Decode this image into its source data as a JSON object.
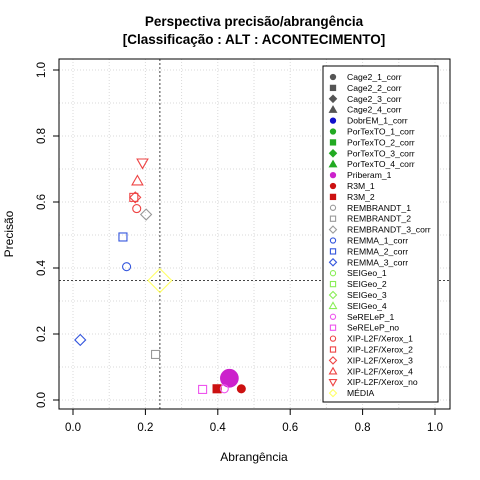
{
  "chart_data": {
    "type": "scatter",
    "title": "Perspectiva precisão/abrangência",
    "subtitle": "[Classificação : ALT : ACONTECIMENTO]",
    "xlabel": "Abrangência",
    "ylabel": "Precisão",
    "xlim": [
      0,
      1
    ],
    "ylim": [
      0,
      1
    ],
    "xticks": [
      "0.0",
      "0.2",
      "0.4",
      "0.6",
      "0.8",
      "1.0"
    ],
    "yticks": [
      "0.0",
      "0.2",
      "0.4",
      "0.6",
      "0.8",
      "1.0"
    ],
    "grid": true,
    "legend_position": "top-right",
    "reference_lines": {
      "x": 0.24,
      "y": 0.362
    },
    "series": [
      {
        "name": "Cage2_1_corr",
        "color": "#555555",
        "shape": "circle",
        "filled": true,
        "points": []
      },
      {
        "name": "Cage2_2_corr",
        "color": "#555555",
        "shape": "square",
        "filled": true,
        "points": []
      },
      {
        "name": "Cage2_3_corr",
        "color": "#555555",
        "shape": "diamond",
        "filled": true,
        "points": []
      },
      {
        "name": "Cage2_4_corr",
        "color": "#555555",
        "shape": "triangle",
        "filled": true,
        "points": []
      },
      {
        "name": "DobrEM_1_corr",
        "color": "#1010cc",
        "shape": "circle",
        "filled": true,
        "points": []
      },
      {
        "name": "PorTexTO_1_corr",
        "color": "#22aa22",
        "shape": "circle",
        "filled": true,
        "points": []
      },
      {
        "name": "PorTexTO_2_corr",
        "color": "#22aa22",
        "shape": "square",
        "filled": true,
        "points": []
      },
      {
        "name": "PorTexTO_3_corr",
        "color": "#22aa22",
        "shape": "diamond",
        "filled": true,
        "points": []
      },
      {
        "name": "PorTexTO_4_corr",
        "color": "#22aa22",
        "shape": "triangle",
        "filled": true,
        "points": []
      },
      {
        "name": "Priberam_1",
        "color": "#cc22cc",
        "shape": "circle",
        "filled": true,
        "points": [
          {
            "x": 0.432,
            "y": 0.066,
            "size": 2.2
          }
        ]
      },
      {
        "name": "R3M_1",
        "color": "#cc1111",
        "shape": "circle",
        "filled": true,
        "points": [
          {
            "x": 0.465,
            "y": 0.034
          }
        ]
      },
      {
        "name": "R3M_2",
        "color": "#cc1111",
        "shape": "square",
        "filled": true,
        "points": [
          {
            "x": 0.398,
            "y": 0.034
          }
        ]
      },
      {
        "name": "REMBRANDT_1",
        "color": "#999999",
        "shape": "circle",
        "filled": false,
        "points": []
      },
      {
        "name": "REMBRANDT_2",
        "color": "#999999",
        "shape": "square",
        "filled": false,
        "points": [
          {
            "x": 0.228,
            "y": 0.138
          }
        ]
      },
      {
        "name": "REMBRANDT_3_corr",
        "color": "#999999",
        "shape": "diamond",
        "filled": false,
        "points": [
          {
            "x": 0.202,
            "y": 0.562
          }
        ]
      },
      {
        "name": "REMMA_1_corr",
        "color": "#3355dd",
        "shape": "circle",
        "filled": false,
        "points": [
          {
            "x": 0.148,
            "y": 0.404
          }
        ]
      },
      {
        "name": "REMMA_2_corr",
        "color": "#3355dd",
        "shape": "square",
        "filled": false,
        "points": [
          {
            "x": 0.138,
            "y": 0.494
          }
        ]
      },
      {
        "name": "REMMA_3_corr",
        "color": "#3355dd",
        "shape": "diamond",
        "filled": false,
        "points": [
          {
            "x": 0.02,
            "y": 0.182
          }
        ]
      },
      {
        "name": "SEIGeo_1",
        "color": "#88ee55",
        "shape": "circle",
        "filled": false,
        "points": []
      },
      {
        "name": "SEIGeo_2",
        "color": "#88ee55",
        "shape": "square",
        "filled": false,
        "points": []
      },
      {
        "name": "SEIGeo_3",
        "color": "#88ee55",
        "shape": "diamond",
        "filled": false,
        "points": []
      },
      {
        "name": "SEIGeo_4",
        "color": "#88ee55",
        "shape": "triangle",
        "filled": false,
        "points": []
      },
      {
        "name": "SeRELeP_1",
        "color": "#ee55ee",
        "shape": "circle",
        "filled": false,
        "points": [
          {
            "x": 0.418,
            "y": 0.034
          }
        ]
      },
      {
        "name": "SeRELeP_no",
        "color": "#ee55ee",
        "shape": "square",
        "filled": false,
        "points": [
          {
            "x": 0.358,
            "y": 0.032
          }
        ]
      },
      {
        "name": "XIP-L2F/Xerox_1",
        "color": "#ee4444",
        "shape": "circle",
        "filled": false,
        "points": [
          {
            "x": 0.176,
            "y": 0.58
          }
        ]
      },
      {
        "name": "XIP-L2F/Xerox_2",
        "color": "#ee4444",
        "shape": "square",
        "filled": false,
        "points": [
          {
            "x": 0.168,
            "y": 0.614
          }
        ]
      },
      {
        "name": "XIP-L2F/Xerox_3",
        "color": "#ee4444",
        "shape": "diamond",
        "filled": false,
        "points": [
          {
            "x": 0.172,
            "y": 0.614
          }
        ]
      },
      {
        "name": "XIP-L2F/Xerox_4",
        "color": "#ee4444",
        "shape": "triangle",
        "filled": false,
        "points": [
          {
            "x": 0.178,
            "y": 0.664
          }
        ]
      },
      {
        "name": "XIP-L2F/Xerox_no",
        "color": "#ee4444",
        "shape": "triangle-down",
        "filled": false,
        "points": [
          {
            "x": 0.192,
            "y": 0.718
          }
        ]
      },
      {
        "name": "MÉDIA",
        "color": "#ffff66",
        "shape": "diamond",
        "filled": false,
        "points": [
          {
            "x": 0.24,
            "y": 0.362,
            "size": 2.2
          }
        ]
      }
    ]
  }
}
